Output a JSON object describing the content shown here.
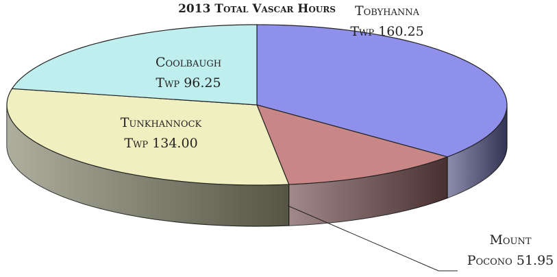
{
  "chart_data": {
    "type": "pie",
    "title": "2013 Total Vascar Hours",
    "categories": [
      "Tobyhanna Twp",
      "Mount Pocono",
      "Tunkhannock Twp",
      "Coolbaugh Twp"
    ],
    "values": [
      160.25,
      51.95,
      134.0,
      96.25
    ],
    "value_labels": [
      "160.25",
      "51.95",
      "134.00",
      "96.25"
    ],
    "colors": [
      "#8f8fec",
      "#c98686",
      "#efefc0",
      "#bfeeee"
    ]
  }
}
